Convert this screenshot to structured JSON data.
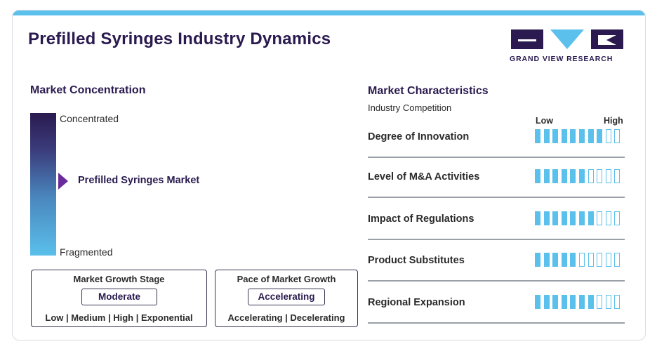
{
  "header": {
    "title": "Prefilled Syringes Industry Dynamics",
    "logo_text": "GRAND VIEW RESEARCH",
    "colors": {
      "brand_dark": "#2a1a4f",
      "accent_blue": "#5bc0eb",
      "marker_purple": "#6a2c9b"
    }
  },
  "concentration": {
    "title": "Market Concentration",
    "top_label": "Concentrated",
    "bottom_label": "Fragmented",
    "marker_label": "Prefilled Syringes Market",
    "marker_position": 0.48
  },
  "growth_stage": {
    "title": "Market Growth Stage",
    "value": "Moderate",
    "scale": "Low | Medium | High | Exponential"
  },
  "growth_pace": {
    "title": "Pace of Market Growth",
    "value": "Accelerating",
    "scale": "Accelerating | Decelerating"
  },
  "characteristics": {
    "title": "Market Characteristics",
    "subtitle": "Industry Competition",
    "legend_low": "Low",
    "legend_high": "High",
    "max_level": 10,
    "rows": [
      {
        "label": "Degree of Innovation",
        "level": 8
      },
      {
        "label": "Level of M&A Activities",
        "level": 6
      },
      {
        "label": "Impact of Regulations",
        "level": 7
      },
      {
        "label": "Product Substitutes",
        "level": 5
      },
      {
        "label": "Regional Expansion",
        "level": 7
      }
    ]
  }
}
